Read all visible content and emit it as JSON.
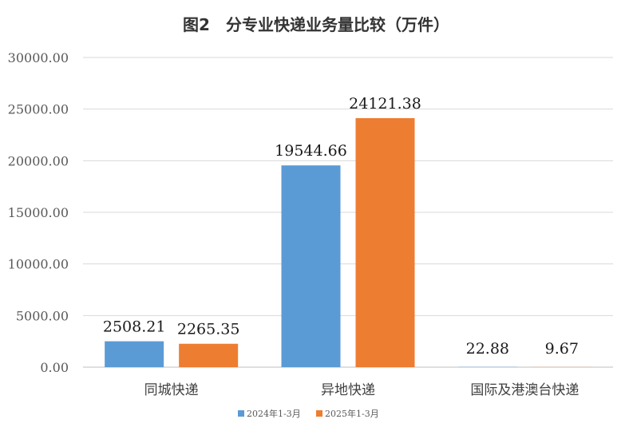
{
  "chart_data": {
    "type": "bar",
    "title": "图2　分专业快递业务量比较（万件）",
    "xlabel": "",
    "ylabel": "",
    "categories": [
      "同城快递",
      "异地快递",
      "国际及港澳台快递"
    ],
    "series": [
      {
        "name": "2024年1-3月",
        "color": "#5B9BD5",
        "values": [
          2508.21,
          19544.66,
          22.88
        ],
        "labels": [
          "2508.21",
          "19544.66",
          "22.88"
        ]
      },
      {
        "name": "2025年1-3月",
        "color": "#ED7D31",
        "values": [
          2265.35,
          24121.38,
          9.67
        ],
        "labels": [
          "2265.35",
          "24121.38",
          "9.67"
        ]
      }
    ],
    "ylim": [
      0,
      30000
    ],
    "yticks": [
      0,
      5000,
      10000,
      15000,
      20000,
      25000,
      30000
    ],
    "ytick_labels": [
      "0.00",
      "5000.00",
      "10000.00",
      "15000.00",
      "20000.00",
      "25000.00",
      "30000.00"
    ],
    "grid": true,
    "legend_position": "bottom"
  }
}
